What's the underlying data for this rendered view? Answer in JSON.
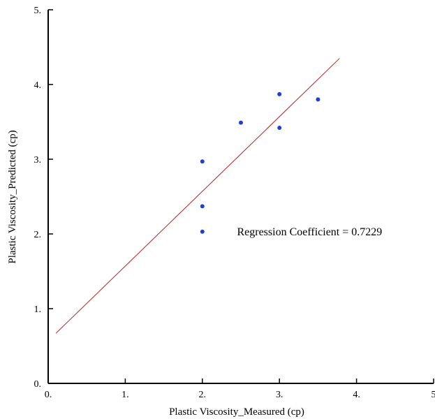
{
  "chart_data": {
    "type": "scatter",
    "title": "",
    "xlabel": "Plastic Viscosity_Measured (cp)",
    "ylabel": "Plastic Viscosity_Predicted (cp)",
    "xlim": [
      0,
      5
    ],
    "ylim": [
      0,
      5
    ],
    "x_ticks": [
      0,
      1,
      2,
      3,
      4,
      5
    ],
    "x_tick_labels": [
      "0.",
      "1.",
      "2.",
      "3.",
      "4.",
      "5"
    ],
    "y_ticks": [
      0,
      1,
      2,
      3,
      4,
      5
    ],
    "y_tick_labels": [
      "0.",
      "1.",
      "2.",
      "3.",
      "4.",
      "5."
    ],
    "grid": false,
    "legend": "none",
    "series": [
      {
        "color": "#1f3fd1",
        "points": [
          {
            "x": 2.0,
            "y": 2.97
          },
          {
            "x": 2.0,
            "y": 2.37
          },
          {
            "x": 2.0,
            "y": 2.03
          },
          {
            "x": 2.5,
            "y": 3.49
          },
          {
            "x": 3.0,
            "y": 3.87
          },
          {
            "x": 3.0,
            "y": 3.42
          },
          {
            "x": 3.5,
            "y": 3.8
          }
        ]
      }
    ],
    "trendline": {
      "color": "#b22222",
      "x": [
        0.1,
        3.78
      ],
      "y": [
        0.67,
        4.35
      ]
    },
    "annotations": [
      {
        "text": "Regression Coefficient = 0.7229",
        "x": 2.45,
        "y": 1.98
      }
    ]
  }
}
